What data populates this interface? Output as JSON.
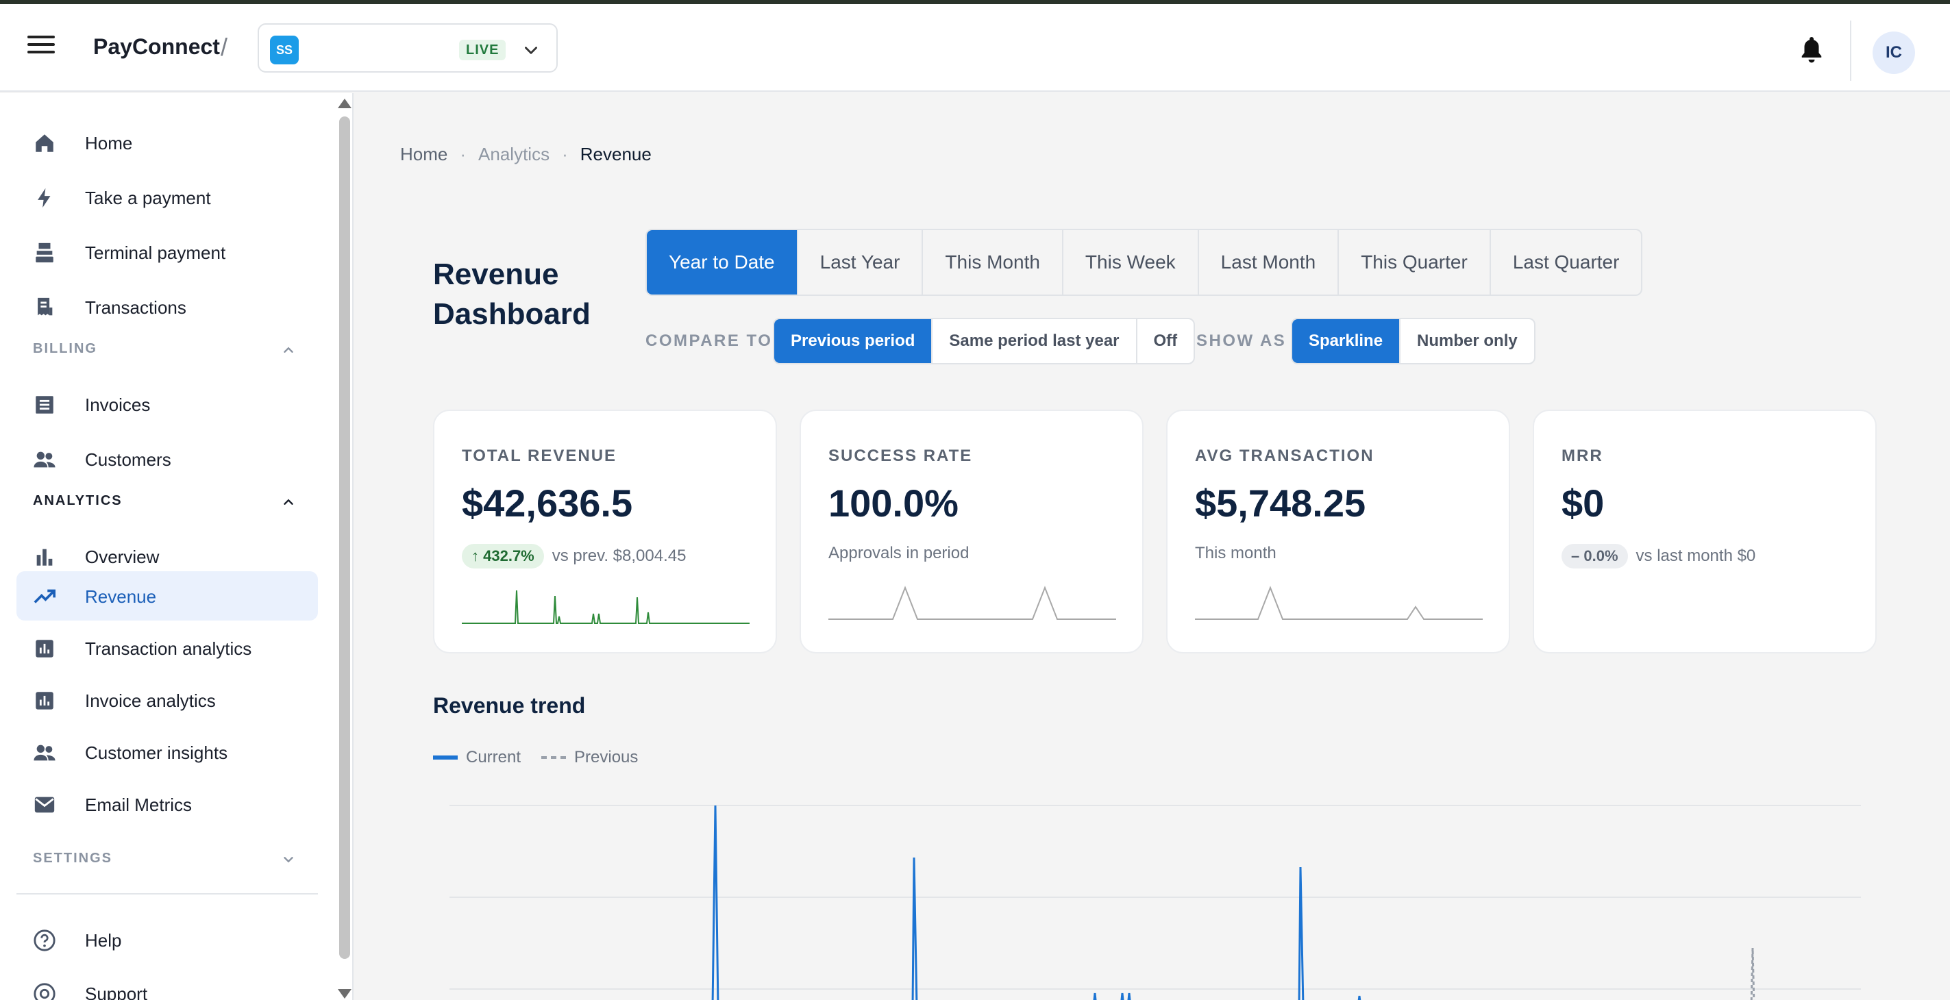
{
  "header": {
    "brand": "PayConnect",
    "separator": "/",
    "account": {
      "initials": "SS",
      "mode": "LIVE"
    },
    "user_initials": "IC"
  },
  "sidebar": {
    "items_top": [
      {
        "label": "Home",
        "icon": "home-icon"
      },
      {
        "label": "Take a payment",
        "icon": "bolt-icon"
      },
      {
        "label": "Terminal payment",
        "icon": "terminal-icon"
      },
      {
        "label": "Transactions",
        "icon": "receipt-icon"
      }
    ],
    "billing": {
      "title": "BILLING",
      "items": [
        {
          "label": "Invoices"
        },
        {
          "label": "Customers"
        }
      ]
    },
    "analytics": {
      "title": "ANALYTICS",
      "items": [
        {
          "label": "Overview"
        },
        {
          "label": "Revenue",
          "active": true
        },
        {
          "label": "Transaction analytics"
        },
        {
          "label": "Invoice analytics"
        },
        {
          "label": "Customer insights"
        },
        {
          "label": "Email Metrics"
        }
      ]
    },
    "settings": {
      "title": "SETTINGS"
    },
    "items_bottom": [
      {
        "label": "Help"
      },
      {
        "label": "Support"
      }
    ]
  },
  "breadcrumb": {
    "items": [
      "Home",
      "Analytics",
      "Revenue"
    ],
    "separator": "·"
  },
  "page": {
    "title": "Revenue Dashboard"
  },
  "periods": {
    "options": [
      "Year to Date",
      "Last Year",
      "This Month",
      "This Week",
      "Last Month",
      "This Quarter",
      "Last Quarter"
    ],
    "selected": "Year to Date"
  },
  "compare": {
    "label": "COMPARE TO",
    "options": [
      "Previous period",
      "Same period last year",
      "Off"
    ],
    "selected": "Previous period"
  },
  "show_as": {
    "label": "SHOW AS",
    "options": [
      "Sparkline",
      "Number only"
    ],
    "selected": "Sparkline"
  },
  "cards": [
    {
      "title": "TOTAL REVENUE",
      "value": "$42,636.5",
      "badge": "432.7%",
      "badge_prefix": "↑",
      "sub": "vs prev. $8,004.45",
      "spark_color": "#2e8b3a"
    },
    {
      "title": "SUCCESS RATE",
      "value": "100.0%",
      "sub": "Approvals in period",
      "spark_color": "#a8a8a8"
    },
    {
      "title": "AVG TRANSACTION",
      "value": "$5,748.25",
      "sub": "This month",
      "spark_color": "#a8a8a8"
    },
    {
      "title": "MRR",
      "value": "$0",
      "badge": "0.0%",
      "badge_prefix": "–",
      "sub": "vs last month $0"
    }
  ],
  "trend": {
    "title": "Revenue trend",
    "legend": {
      "current": "Current",
      "previous": "Previous"
    },
    "colors": {
      "current": "#1c74d3",
      "previous": "#9aa1ab"
    }
  }
}
